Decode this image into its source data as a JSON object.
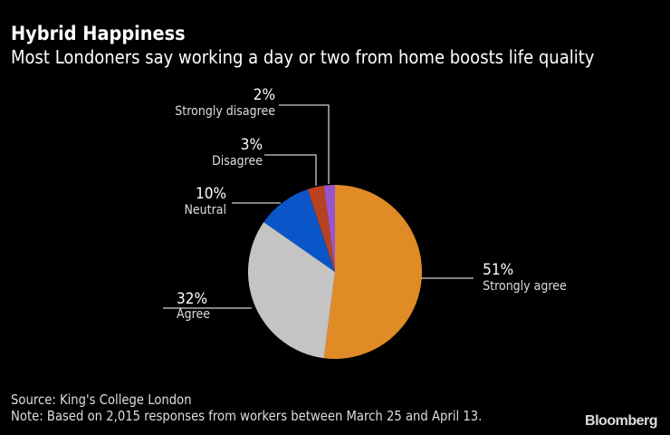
{
  "header": {
    "title": "Hybrid Happiness",
    "subtitle": "Most Londoners say working a day or two from home boosts life quality"
  },
  "footer": {
    "source": "Source: King's College London",
    "note": "Note: Based on 2,015 responses from workers between March 25 and April 13.",
    "brand": "Bloomberg"
  },
  "labels": {
    "strongly_agree": {
      "pct": "51%",
      "name": "Strongly agree"
    },
    "agree": {
      "pct": "32%",
      "name": "Agree"
    },
    "neutral": {
      "pct": "10%",
      "name": "Neutral"
    },
    "disagree": {
      "pct": "3%",
      "name": "Disagree"
    },
    "strongly_disagree": {
      "pct": "2%",
      "name": "Strongly disagree"
    }
  },
  "chart_data": {
    "type": "pie",
    "title": "Hybrid Happiness",
    "subtitle": "Most Londoners say working a day or two from home boosts life quality",
    "categories": [
      "Strongly agree",
      "Agree",
      "Neutral",
      "Disagree",
      "Strongly disagree"
    ],
    "values": [
      51,
      32,
      10,
      3,
      2
    ],
    "unit": "%",
    "colors": [
      "#e08b26",
      "#c4c4c4",
      "#0a55c8",
      "#b8421f",
      "#9955cc"
    ],
    "start_angle": "12 o'clock, clockwise",
    "legend": "none (direct labels with leader lines)",
    "source": "King's College London",
    "note": "Based on 2,015 responses from workers between March 25 and April 13."
  }
}
